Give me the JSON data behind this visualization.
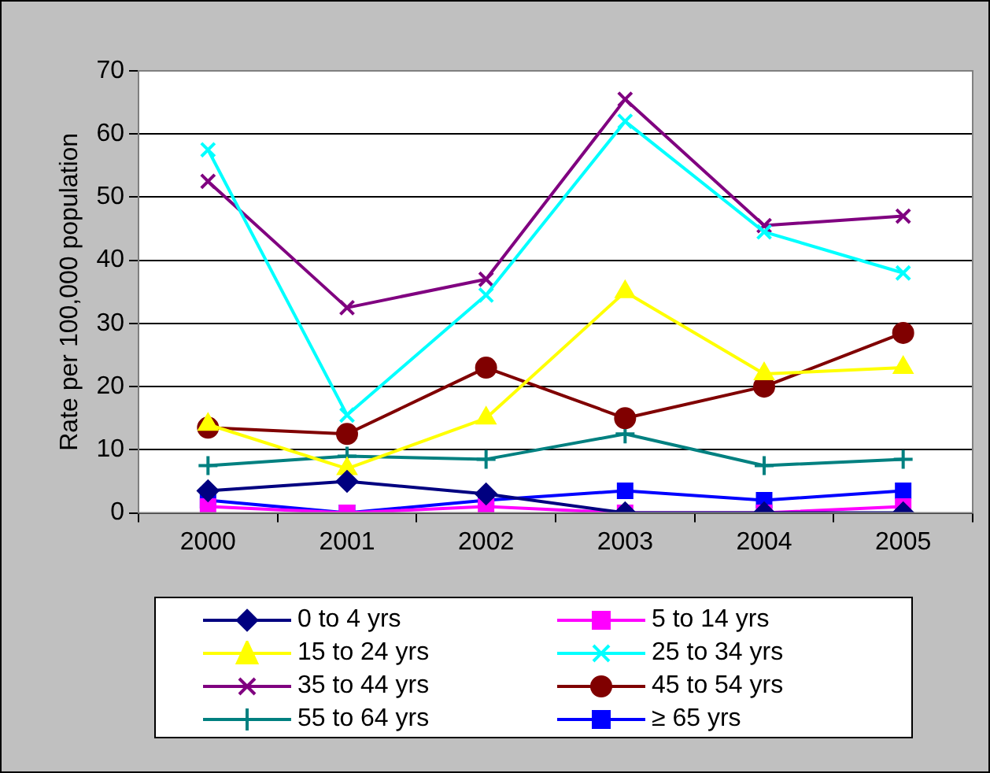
{
  "chart_data": {
    "type": "line",
    "ylabel": "Rate per 100,000 population",
    "categories": [
      "2000",
      "2001",
      "2002",
      "2003",
      "2004",
      "2005"
    ],
    "ylim": [
      0,
      70
    ],
    "yticks": [
      0,
      10,
      20,
      30,
      40,
      50,
      60,
      70
    ],
    "grid": "y",
    "legend": "bottom",
    "series": [
      {
        "name": "0 to 4 yrs",
        "color": "#000080",
        "marker": "diamond",
        "values": [
          3.5,
          5,
          3,
          0,
          0,
          0
        ]
      },
      {
        "name": "5 to 14 yrs",
        "color": "#ff00ff",
        "marker": "square",
        "values": [
          1,
          0,
          1,
          0,
          0,
          1
        ]
      },
      {
        "name": "15 to 24 yrs",
        "color": "#ffff00",
        "marker": "triangle",
        "values": [
          14,
          7,
          15,
          35,
          22,
          23
        ]
      },
      {
        "name": "25 to 34 yrs",
        "color": "#00ffff",
        "marker": "cross",
        "values": [
          57.5,
          15.5,
          34.5,
          62,
          44.5,
          38
        ]
      },
      {
        "name": "35 to 44 yrs",
        "color": "#800080",
        "marker": "cross",
        "values": [
          52.5,
          32.5,
          37,
          65.5,
          45.5,
          47
        ]
      },
      {
        "name": "45 to 54 yrs",
        "color": "#800000",
        "marker": "circle",
        "values": [
          13.5,
          12.5,
          23,
          15,
          20,
          28.5
        ]
      },
      {
        "name": "55 to 64 yrs",
        "color": "#008080",
        "marker": "plus",
        "values": [
          7.5,
          9,
          8.5,
          12.5,
          7.5,
          8.5
        ]
      },
      {
        "name": "≥ 65 yrs",
        "color": "#0000ff",
        "marker": "square",
        "values": [
          2,
          0,
          2,
          3.5,
          2,
          3.5
        ]
      }
    ]
  }
}
